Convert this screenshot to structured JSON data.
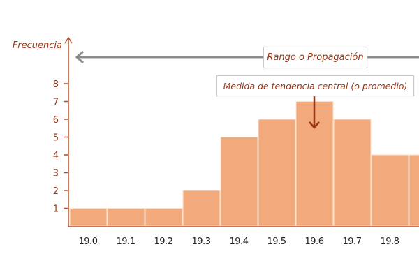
{
  "chart_data": {
    "type": "bar",
    "title": "",
    "xlabel": "",
    "ylabel": "Frecuencia",
    "categories": [
      "19.0",
      "19.1",
      "19.2",
      "19.3",
      "19.4",
      "19.5",
      "19.6",
      "19.7",
      "19.8",
      ""
    ],
    "values": [
      1,
      1,
      1,
      2,
      5,
      6,
      7,
      6,
      4,
      4
    ],
    "yticks": [
      "1",
      "2",
      "3",
      "4",
      "5",
      "6",
      "7",
      "8"
    ],
    "ylim": [
      0,
      10
    ],
    "grid": false,
    "annotations": {
      "range": "Rango o Propagación",
      "central": "Medida de tendencia central (o promedio)"
    },
    "colors": {
      "bar": "#f2aa7c",
      "axis": "#b4532b",
      "text": "#9b3412",
      "range_arrow": "#8c8c8c"
    }
  }
}
